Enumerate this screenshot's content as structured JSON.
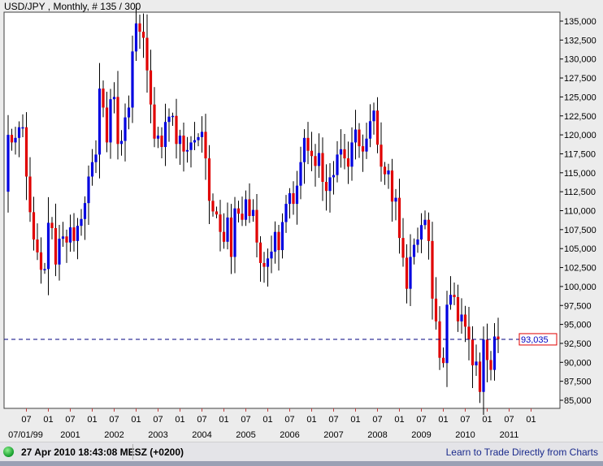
{
  "title": "USD/JPY , Monthly, # 135 / 300",
  "status": {
    "timestamp": "27 Apr 2010 18:43:08  MESZ (+0200)",
    "link": "Learn to Trade Directly from Charts",
    "connection_icon": "green-led"
  },
  "colors": {
    "up": "#0000e0",
    "down": "#e00000",
    "last_price_line": "#000080",
    "last_price_box": "#e00000"
  },
  "chart_data": {
    "type": "candlestick",
    "symbol": "USD/JPY",
    "interval": "Monthly",
    "first_month": "1999-02",
    "first_open": 112.5,
    "close": [
      120.0,
      119.0,
      119.6,
      121.0,
      121.0,
      114.5,
      109.8,
      106.2,
      104.5,
      102.2,
      102.3,
      108.4,
      107.7,
      102.9,
      106.3,
      106.6,
      105.8,
      107.8,
      106.0,
      108.0,
      108.9,
      111.0,
      114.5,
      116.4,
      117.4,
      126.1,
      123.6,
      119.0,
      124.7,
      125.0,
      118.8,
      119.2,
      122.3,
      123.6,
      131.0,
      134.7,
      133.6,
      132.8,
      128.5,
      124.0,
      119.5,
      119.9,
      118.4,
      121.7,
      122.4,
      122.5,
      118.8,
      119.9,
      117.8,
      118.0,
      119.0,
      119.3,
      119.7,
      120.4,
      116.9,
      111.3,
      109.9,
      109.5,
      107.2,
      105.9,
      109.1,
      103.9,
      110.3,
      109.6,
      108.8,
      111.5,
      109.3,
      110.1,
      105.8,
      103.1,
      102.6,
      103.7,
      104.6,
      107.2,
      104.8,
      108.5,
      110.9,
      112.3,
      110.9,
      113.3,
      116.4,
      119.6,
      117.9,
      117.2,
      115.9,
      117.6,
      113.8,
      112.6,
      114.4,
      114.7,
      117.4,
      118.1,
      116.9,
      115.8,
      119.0,
      120.7,
      118.5,
      117.8,
      119.5,
      121.8,
      123.2,
      118.7,
      115.8,
      114.8,
      115.3,
      111.2,
      111.7,
      106.4,
      103.8,
      99.7,
      103.9,
      105.5,
      106.2,
      108.1,
      108.8,
      106.0,
      98.4,
      95.4,
      90.6,
      89.9,
      97.6,
      98.9,
      98.6,
      95.4,
      96.3,
      94.7,
      93.0,
      89.6,
      90.1,
      86.1,
      93.0,
      90.3,
      89.0,
      93.4,
      93.035
    ],
    "last_price": "93,035",
    "y_range": [
      84,
      136
    ],
    "y_ticks": [
      "85,000",
      "87,500",
      "90,000",
      "92,500",
      "95,000",
      "97,500",
      "100,000",
      "102,500",
      "105,000",
      "107,500",
      "110,000",
      "112,500",
      "115,000",
      "117,500",
      "120,000",
      "122,500",
      "125,000",
      "127,500",
      "130,000",
      "132,500",
      "135,000"
    ],
    "y_tick_values": [
      85,
      87.5,
      90,
      92.5,
      95,
      97.5,
      100,
      102.5,
      105,
      107.5,
      110,
      112.5,
      115,
      117.5,
      120,
      122.5,
      125,
      127.5,
      130,
      132.5,
      135
    ],
    "x_month_labels": [
      "07",
      "01",
      "07",
      "01",
      "07",
      "01",
      "07",
      "01",
      "07",
      "01",
      "07",
      "01",
      "07",
      "01",
      "07",
      "01",
      "07",
      "01",
      "07",
      "01",
      "07",
      "01",
      "07",
      "01"
    ],
    "x_year_labels": [
      "07/01/99",
      "",
      "2001",
      "",
      "2002",
      "",
      "2003",
      "",
      "2004",
      "",
      "2005",
      "",
      "2006",
      "",
      "2007",
      "",
      "2008",
      "",
      "2009",
      "",
      "2010",
      "",
      "2011",
      ""
    ],
    "y_axis_side": "right",
    "grid": false
  }
}
